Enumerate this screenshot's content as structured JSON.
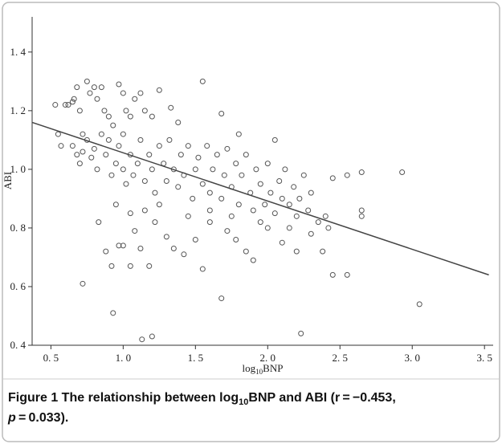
{
  "chart_data": {
    "type": "scatter",
    "y_label": "ABI",
    "x_label": {
      "main": "log",
      "sub": "10",
      "rest": "BNP"
    },
    "caption": {
      "figure": "Figure 1",
      "part1": " The relationship between log",
      "sub": "10",
      "part2": "BNP and ABI (r = −0.453, ",
      "p": "p",
      "part3": " = 0.033)."
    },
    "xlim": [
      0.37,
      3.56
    ],
    "ylim": [
      0.4,
      1.52
    ],
    "xticks": [
      {
        "value": 0.5,
        "label": "0. 5"
      },
      {
        "value": 1.0,
        "label": "1. 0"
      },
      {
        "value": 1.5,
        "label": "1. 5"
      },
      {
        "value": 2.0,
        "label": "2. 0"
      },
      {
        "value": 2.5,
        "label": "2. 5"
      },
      {
        "value": 3.0,
        "label": "3. 0"
      },
      {
        "value": 3.5,
        "label": "3. 5"
      }
    ],
    "yticks": [
      {
        "value": 0.4,
        "label": "0. 4"
      },
      {
        "value": 0.6,
        "label": "0. 6"
      },
      {
        "value": 0.8,
        "label": "0. 8"
      },
      {
        "value": 1.0,
        "label": "1. 0"
      },
      {
        "value": 1.2,
        "label": "1. 2"
      },
      {
        "value": 1.4,
        "label": "1. 4"
      }
    ],
    "color": "#555555",
    "x": [
      0.53,
      0.55,
      0.57,
      0.6,
      0.62,
      0.65,
      0.66,
      0.68,
      0.7,
      0.72,
      0.75,
      0.77,
      0.8,
      0.82,
      0.85,
      0.87,
      0.9,
      0.93,
      0.97,
      1.0,
      1.02,
      1.05,
      1.08,
      1.12,
      1.15,
      1.2,
      1.25,
      1.33,
      1.38,
      1.55,
      1.68,
      1.8,
      2.05,
      0.65,
      0.68,
      0.7,
      0.72,
      0.75,
      0.78,
      0.8,
      0.82,
      0.85,
      0.88,
      0.9,
      0.92,
      0.95,
      0.97,
      1.0,
      1.0,
      1.02,
      1.05,
      1.07,
      1.1,
      1.12,
      1.15,
      1.18,
      1.2,
      1.22,
      1.25,
      1.28,
      1.3,
      1.32,
      1.35,
      1.38,
      1.4,
      1.42,
      1.45,
      1.48,
      1.5,
      1.52,
      1.55,
      1.58,
      1.6,
      1.62,
      1.65,
      1.68,
      1.7,
      1.72,
      1.75,
      1.78,
      1.8,
      1.82,
      1.85,
      1.88,
      1.9,
      1.92,
      1.95,
      1.98,
      2.0,
      2.02,
      2.05,
      2.08,
      2.1,
      2.12,
      2.15,
      2.18,
      2.2,
      2.22,
      2.25,
      2.28,
      2.3,
      2.35,
      2.4,
      2.42,
      2.45,
      2.55,
      2.65,
      2.65,
      2.65,
      2.93,
      0.72,
      0.83,
      0.88,
      0.92,
      0.93,
      0.97,
      1.0,
      1.05,
      1.08,
      1.12,
      1.13,
      1.18,
      1.2,
      1.22,
      1.3,
      1.35,
      1.42,
      1.5,
      1.55,
      1.6,
      1.68,
      1.72,
      1.78,
      1.85,
      1.9,
      2.0,
      2.1,
      2.2,
      2.23,
      2.38,
      2.45,
      2.55,
      3.05,
      0.95,
      1.05,
      1.15,
      1.25,
      1.45,
      1.6,
      1.75,
      1.95,
      2.3,
      2.15
    ],
    "values": [
      1.22,
      1.12,
      1.08,
      1.22,
      1.22,
      1.23,
      1.24,
      1.28,
      1.2,
      1.12,
      1.3,
      1.26,
      1.28,
      1.24,
      1.28,
      1.2,
      1.18,
      1.15,
      1.29,
      1.26,
      1.2,
      1.18,
      1.24,
      1.26,
      1.2,
      1.18,
      1.27,
      1.21,
      1.16,
      1.3,
      1.19,
      1.12,
      1.1,
      1.08,
      1.05,
      1.02,
      1.06,
      1.1,
      1.04,
      1.07,
      1.0,
      1.12,
      1.05,
      1.1,
      0.98,
      1.02,
      1.08,
      1.12,
      1.0,
      0.95,
      1.05,
      0.98,
      1.02,
      1.1,
      0.96,
      1.05,
      1.0,
      0.92,
      1.08,
      1.02,
      0.96,
      1.1,
      1.0,
      0.94,
      1.05,
      0.98,
      1.08,
      0.9,
      1.0,
      1.04,
      0.95,
      1.08,
      0.92,
      1.0,
      1.05,
      0.9,
      0.98,
      1.07,
      0.94,
      1.02,
      0.88,
      0.98,
      1.05,
      0.92,
      0.86,
      1.0,
      0.95,
      0.88,
      1.02,
      0.92,
      0.85,
      0.96,
      0.9,
      1.0,
      0.88,
      0.94,
      0.84,
      0.9,
      0.98,
      0.86,
      0.92,
      0.82,
      0.84,
      0.8,
      0.97,
      0.98,
      0.99,
      0.86,
      0.84,
      0.99,
      0.61,
      0.82,
      0.72,
      0.67,
      0.51,
      0.74,
      0.74,
      0.67,
      0.79,
      0.73,
      0.42,
      0.67,
      0.43,
      0.82,
      0.77,
      0.73,
      0.71,
      0.76,
      0.66,
      0.82,
      0.56,
      0.79,
      0.76,
      0.72,
      0.69,
      0.8,
      0.75,
      0.72,
      0.44,
      0.72,
      0.64,
      0.64,
      0.54,
      0.88,
      0.85,
      0.86,
      0.88,
      0.84,
      0.86,
      0.84,
      0.82,
      0.78,
      0.8
    ],
    "fit_line": {
      "x": [
        0.37,
        3.53
      ],
      "values": [
        1.16,
        0.64
      ],
      "color": "#444444"
    }
  }
}
